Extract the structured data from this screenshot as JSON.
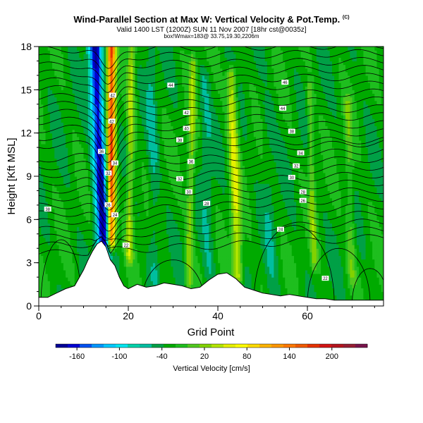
{
  "header": {
    "title": "Wind-Parallel Section at Max W: Vertical Velocity & Pot.Temp.",
    "copyright": "(C)",
    "valid": "Valid 1400 LST (1200Z) SUN 11 Nov 2007 [18hr cst@0035z]",
    "box_info": "box!Wmax=183@ 33.75,19.30,2206m"
  },
  "chart_data": {
    "type": "heatmap",
    "title": "Wind-Parallel Section at Max W: Vertical Velocity & Pot.Temp.",
    "xlabel": "Grid Point",
    "ylabel": "Height [Kft MSL]",
    "xlim": [
      0,
      77
    ],
    "ylim": [
      0,
      18
    ],
    "x_ticks": [
      0,
      20,
      40,
      60
    ],
    "y_ticks": [
      0,
      3,
      6,
      9,
      12,
      15,
      18
    ],
    "colorbar": {
      "label": "Vertical Velocity [cm/s]",
      "tick_labels": [
        "-160",
        "-100",
        "-40",
        "20",
        "80",
        "140",
        "200"
      ],
      "min": -190,
      "max": 250,
      "step": 20,
      "colors": [
        "#000096",
        "#0000d2",
        "#0050f0",
        "#0096ff",
        "#00c8ff",
        "#00e6f0",
        "#00d2aa",
        "#00bea0",
        "#00a046",
        "#00aa00",
        "#1ebe1e",
        "#50c81e",
        "#82d200",
        "#b4e600",
        "#e6f000",
        "#ffff00",
        "#ffdc00",
        "#ffb400",
        "#ff9600",
        "#ff7800",
        "#f05a00",
        "#e63200",
        "#d21414",
        "#b4141e",
        "#961e32",
        "#78144b"
      ]
    },
    "terrain_kft": [
      [
        0,
        0.6
      ],
      [
        2,
        0.6
      ],
      [
        4,
        0.9
      ],
      [
        6,
        1.2
      ],
      [
        8,
        1.4
      ],
      [
        10,
        2.5
      ],
      [
        11,
        3.2
      ],
      [
        12,
        3.8
      ],
      [
        13,
        4.3
      ],
      [
        14,
        4.5
      ],
      [
        15,
        4.1
      ],
      [
        16,
        3.2
      ],
      [
        17,
        2.8
      ],
      [
        18,
        2.0
      ],
      [
        19,
        1.4
      ],
      [
        20,
        1.2
      ],
      [
        22,
        1.5
      ],
      [
        24,
        1.3
      ],
      [
        26,
        1.4
      ],
      [
        28,
        1.6
      ],
      [
        30,
        1.5
      ],
      [
        32,
        1.4
      ],
      [
        34,
        1.2
      ],
      [
        36,
        1.3
      ],
      [
        38,
        1.8
      ],
      [
        40,
        2.2
      ],
      [
        42,
        2.3
      ],
      [
        44,
        1.9
      ],
      [
        46,
        1.3
      ],
      [
        48,
        1.1
      ],
      [
        50,
        0.9
      ],
      [
        52,
        0.8
      ],
      [
        54,
        0.7
      ],
      [
        56,
        0.8
      ],
      [
        58,
        0.7
      ],
      [
        60,
        0.6
      ],
      [
        62,
        0.5
      ],
      [
        64,
        0.5
      ],
      [
        66,
        0.4
      ],
      [
        68,
        0.4
      ],
      [
        70,
        0.4
      ],
      [
        72,
        0.4
      ],
      [
        74,
        0.4
      ],
      [
        77,
        0.4
      ]
    ],
    "updraft_bands": [
      {
        "name": "main-updraft",
        "value": 230,
        "x0": 16.2,
        "x1": 16.2,
        "halfwidth": 1.0,
        "ybottom": 4.5,
        "ytop": 18
      },
      {
        "name": "updraft-2",
        "value": 70,
        "x0": 20.2,
        "x1": 20.8,
        "halfwidth": 0.9,
        "ybottom": 3.5,
        "ytop": 18
      },
      {
        "name": "updraft-3",
        "value": 60,
        "x0": 33.5,
        "x1": 34.5,
        "halfwidth": 0.9,
        "ybottom": 1.5,
        "ytop": 17
      },
      {
        "name": "updraft-4",
        "value": 90,
        "x0": 44.5,
        "x1": 43.0,
        "halfwidth": 1.2,
        "ybottom": 2.0,
        "ytop": 16
      },
      {
        "name": "updraft-5",
        "value": 50,
        "x0": 61.5,
        "x1": 60.5,
        "halfwidth": 0.8,
        "ybottom": 3.0,
        "ytop": 15
      },
      {
        "name": "updraft-6",
        "value": 40,
        "x0": 70.0,
        "x1": 69.0,
        "halfwidth": 1.0,
        "ybottom": 2.0,
        "ytop": 14
      }
    ],
    "downdraft_bands": [
      {
        "name": "main-downdraft",
        "value": -175,
        "x0": 14.5,
        "x1": 12.5,
        "halfwidth": 1.6,
        "ybottom": 4.0,
        "ytop": 18
      },
      {
        "name": "downdraft-2",
        "value": -30,
        "x0": 26.0,
        "x1": 25.0,
        "halfwidth": 1.2,
        "ybottom": 2.0,
        "ytop": 18
      },
      {
        "name": "downdraft-3",
        "value": -25,
        "x0": 38.0,
        "x1": 37.0,
        "halfwidth": 1.5,
        "ybottom": 2.0,
        "ytop": 16
      },
      {
        "name": "downdraft-4",
        "value": -20,
        "x0": 52.0,
        "x1": 51.0,
        "halfwidth": 1.5,
        "ybottom": 1.0,
        "ytop": 14
      }
    ],
    "contour_labels": [
      {
        "text": "44",
        "x": 29.5,
        "y": 15.3
      },
      {
        "text": "42",
        "x": 33.0,
        "y": 13.4
      },
      {
        "text": "42",
        "x": 16.5,
        "y": 14.6
      },
      {
        "text": "40",
        "x": 33.0,
        "y": 12.3
      },
      {
        "text": "42",
        "x": 16.3,
        "y": 12.8
      },
      {
        "text": "38",
        "x": 31.5,
        "y": 11.5
      },
      {
        "text": "36",
        "x": 14.0,
        "y": 10.7
      },
      {
        "text": "36",
        "x": 34.0,
        "y": 10.0
      },
      {
        "text": "34",
        "x": 17.0,
        "y": 9.9
      },
      {
        "text": "32",
        "x": 15.5,
        "y": 9.2
      },
      {
        "text": "32",
        "x": 31.5,
        "y": 8.8
      },
      {
        "text": "30",
        "x": 33.5,
        "y": 7.9
      },
      {
        "text": "28",
        "x": 37.5,
        "y": 7.1
      },
      {
        "text": "26",
        "x": 15.5,
        "y": 7.0
      },
      {
        "text": "24",
        "x": 17.0,
        "y": 6.3
      },
      {
        "text": "22",
        "x": 19.5,
        "y": 4.2
      },
      {
        "text": "38",
        "x": 2.0,
        "y": 6.7
      },
      {
        "text": "46",
        "x": 55.0,
        "y": 15.5
      },
      {
        "text": "44",
        "x": 54.5,
        "y": 13.7
      },
      {
        "text": "38",
        "x": 56.5,
        "y": 12.1
      },
      {
        "text": "34",
        "x": 58.5,
        "y": 10.6
      },
      {
        "text": "32",
        "x": 57.5,
        "y": 9.7
      },
      {
        "text": "30",
        "x": 56.5,
        "y": 8.9
      },
      {
        "text": "28",
        "x": 59.0,
        "y": 7.9
      },
      {
        "text": "26",
        "x": 59.0,
        "y": 7.3
      },
      {
        "text": "24",
        "x": 54.0,
        "y": 5.3
      },
      {
        "text": "22",
        "x": 64.0,
        "y": 1.9
      }
    ]
  }
}
